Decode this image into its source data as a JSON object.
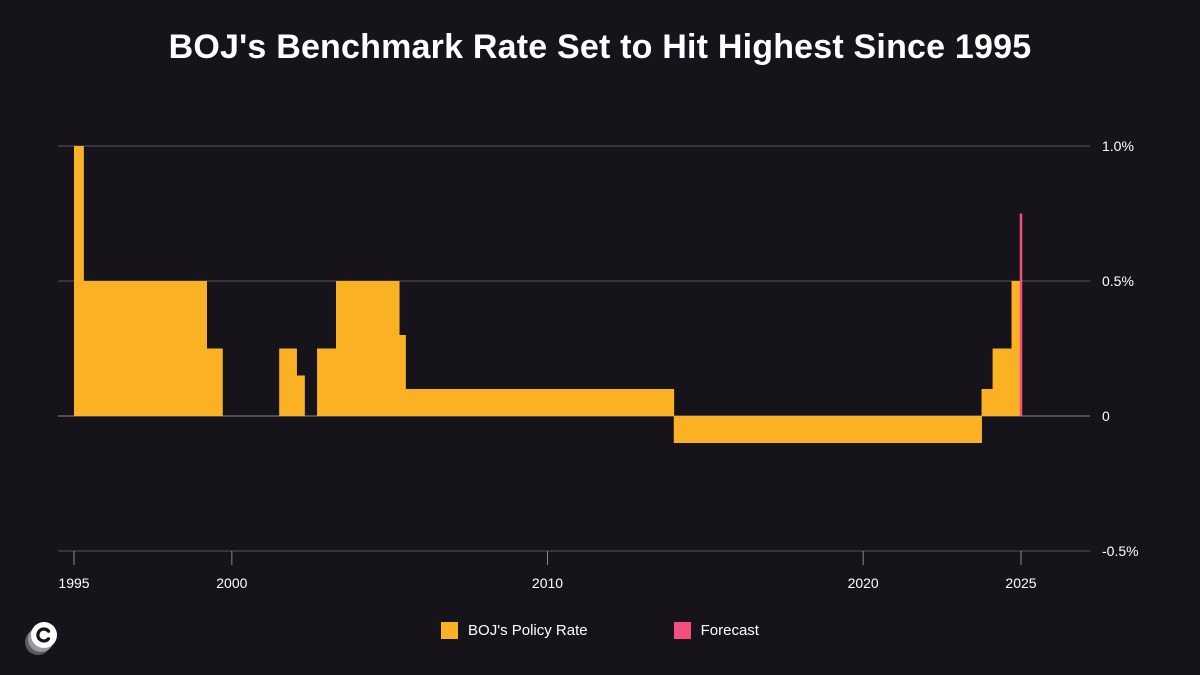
{
  "chart_data": {
    "type": "area",
    "title": "BOJ's Benchmark Rate Set to Hit Highest Since 1995",
    "xlabel": "",
    "ylabel": "",
    "xlim": [
      1994.5,
      2027
    ],
    "ylim": [
      -0.5,
      1.0
    ],
    "x_ticks": [
      {
        "value": 1995,
        "label": "1995"
      },
      {
        "value": 2000,
        "label": "2000"
      },
      {
        "value": 2010,
        "label": "2010"
      },
      {
        "value": 2020,
        "label": "2020"
      },
      {
        "value": 2025,
        "label": "2025"
      }
    ],
    "y_ticks": [
      {
        "value": 1.0,
        "label": "1.0%"
      },
      {
        "value": 0.5,
        "label": "0.5%"
      },
      {
        "value": 0,
        "label": "0"
      },
      {
        "value": -0.5,
        "label": "-0.5%"
      }
    ],
    "grid": true,
    "legend_position": "bottom-center",
    "series": [
      {
        "name": "BOJ's Policy Rate",
        "color": "#fbb124",
        "style": "step-area",
        "points": [
          {
            "x": 1995.0,
            "y": 1.0
          },
          {
            "x": 1995.3,
            "y": 0.5
          },
          {
            "x": 1999.2,
            "y": 0.25
          },
          {
            "x": 1999.7,
            "y": 0.0
          },
          {
            "x": 2001.5,
            "y": 0.25
          },
          {
            "x": 2002.05,
            "y": 0.15
          },
          {
            "x": 2002.3,
            "y": 0.0
          },
          {
            "x": 2002.7,
            "y": 0.25
          },
          {
            "x": 2003.3,
            "y": 0.5
          },
          {
            "x": 2005.3,
            "y": 0.3
          },
          {
            "x": 2005.5,
            "y": 0.1
          },
          {
            "x": 2014.0,
            "y": -0.1
          },
          {
            "x": 2023.75,
            "y": 0.1
          },
          {
            "x": 2024.1,
            "y": 0.25
          },
          {
            "x": 2024.7,
            "y": 0.5
          },
          {
            "x": 2025.0,
            "y": 0.5
          }
        ]
      },
      {
        "name": "Forecast",
        "color": "#f54d7d",
        "style": "vertical-line",
        "points": [
          {
            "x": 2025.0,
            "y": 0.0
          },
          {
            "x": 2025.0,
            "y": 0.75
          }
        ]
      }
    ]
  },
  "colors": {
    "background": "#16141a",
    "grid": "#55535a",
    "text": "#ffffff"
  },
  "logo": {
    "icon": "c-circle-logo-icon"
  }
}
